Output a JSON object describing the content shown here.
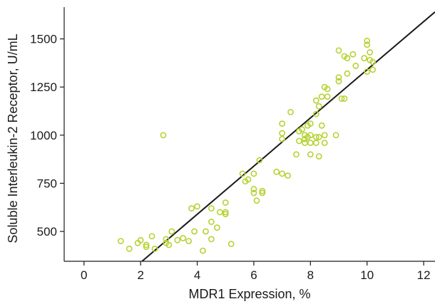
{
  "chart_data": {
    "type": "scatter",
    "title": "",
    "xlabel": "MDR1 Expression, %",
    "ylabel": "Soluble Interleukin-2 Receptor, U/mL",
    "xlim": [
      -0.7,
      12.4
    ],
    "ylim": [
      345,
      1665
    ],
    "xticks": [
      0,
      2,
      4,
      6,
      8,
      10,
      12
    ],
    "yticks": [
      500,
      750,
      1000,
      1250,
      1500
    ],
    "grid": false,
    "legend": "none",
    "point_color": "#b5d334",
    "line_color": "#1a1a1a",
    "points": [
      [
        1.3,
        450
      ],
      [
        1.6,
        410
      ],
      [
        1.9,
        440
      ],
      [
        2.0,
        455
      ],
      [
        2.2,
        430
      ],
      [
        2.2,
        420
      ],
      [
        2.4,
        475
      ],
      [
        2.5,
        410
      ],
      [
        2.8,
        1000
      ],
      [
        2.9,
        460
      ],
      [
        2.9,
        440
      ],
      [
        3.0,
        430
      ],
      [
        3.1,
        500
      ],
      [
        3.3,
        455
      ],
      [
        3.5,
        465
      ],
      [
        3.7,
        450
      ],
      [
        3.8,
        620
      ],
      [
        3.9,
        500
      ],
      [
        4.0,
        630
      ],
      [
        4.2,
        400
      ],
      [
        4.3,
        500
      ],
      [
        4.5,
        620
      ],
      [
        4.5,
        550
      ],
      [
        4.5,
        460
      ],
      [
        4.7,
        520
      ],
      [
        4.8,
        600
      ],
      [
        5.0,
        600
      ],
      [
        5.0,
        590
      ],
      [
        5.0,
        650
      ],
      [
        5.2,
        435
      ],
      [
        5.6,
        800
      ],
      [
        5.7,
        760
      ],
      [
        5.8,
        770
      ],
      [
        6.0,
        800
      ],
      [
        6.0,
        720
      ],
      [
        6.0,
        700
      ],
      [
        6.1,
        660
      ],
      [
        6.2,
        870
      ],
      [
        6.3,
        710
      ],
      [
        6.3,
        700
      ],
      [
        6.8,
        810
      ],
      [
        7.0,
        800
      ],
      [
        7.0,
        1060
      ],
      [
        7.0,
        1010
      ],
      [
        7.0,
        980
      ],
      [
        7.2,
        790
      ],
      [
        7.3,
        1120
      ],
      [
        7.5,
        900
      ],
      [
        7.6,
        1020
      ],
      [
        7.6,
        970
      ],
      [
        7.7,
        1030
      ],
      [
        7.8,
        1000
      ],
      [
        7.8,
        980
      ],
      [
        7.8,
        960
      ],
      [
        7.9,
        1050
      ],
      [
        7.9,
        990
      ],
      [
        8.0,
        1060
      ],
      [
        8.0,
        1000
      ],
      [
        8.0,
        960
      ],
      [
        8.0,
        900
      ],
      [
        8.2,
        1180
      ],
      [
        8.2,
        1110
      ],
      [
        8.2,
        990
      ],
      [
        8.2,
        960
      ],
      [
        8.3,
        1150
      ],
      [
        8.3,
        990
      ],
      [
        8.3,
        890
      ],
      [
        8.4,
        1200
      ],
      [
        8.4,
        1050
      ],
      [
        8.5,
        1000
      ],
      [
        8.5,
        960
      ],
      [
        8.5,
        1250
      ],
      [
        8.6,
        1200
      ],
      [
        8.6,
        1240
      ],
      [
        8.9,
        1000
      ],
      [
        9.0,
        1440
      ],
      [
        9.0,
        1300
      ],
      [
        9.0,
        1280
      ],
      [
        9.1,
        1190
      ],
      [
        9.2,
        1410
      ],
      [
        9.2,
        1190
      ],
      [
        9.3,
        1400
      ],
      [
        9.3,
        1320
      ],
      [
        9.5,
        1420
      ],
      [
        9.6,
        1360
      ],
      [
        9.9,
        1400
      ],
      [
        10.0,
        1490
      ],
      [
        10.0,
        1470
      ],
      [
        10.0,
        1330
      ],
      [
        10.1,
        1430
      ],
      [
        10.1,
        1390
      ],
      [
        10.2,
        1380
      ],
      [
        10.2,
        1340
      ]
    ],
    "fit_line": {
      "x": [
        2.05,
        12.4
      ],
      "y": [
        345,
        1640
      ]
    }
  }
}
